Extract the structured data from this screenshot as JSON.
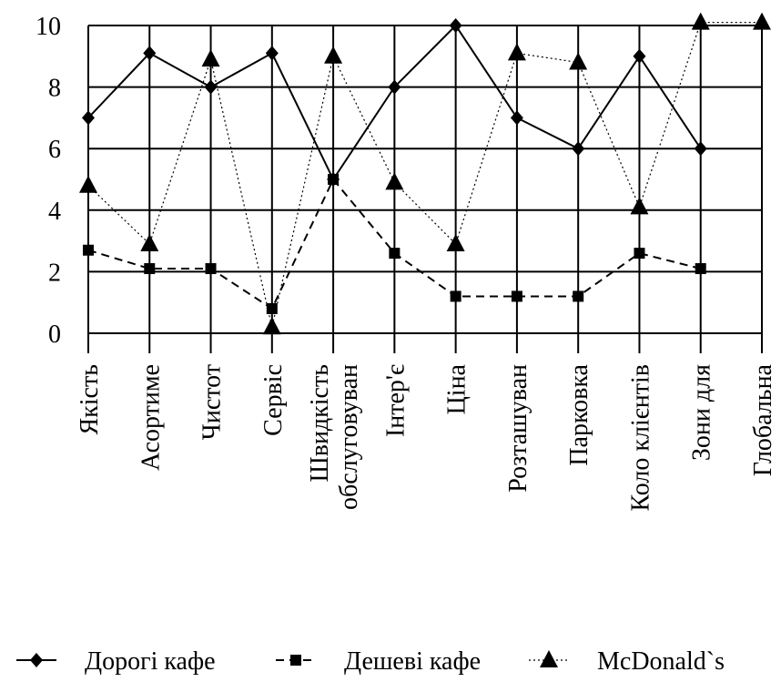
{
  "chart_data": {
    "type": "line",
    "categories": [
      [
        "Якість"
      ],
      [
        "Асортиме"
      ],
      [
        "Чистот"
      ],
      [
        "Сервіс"
      ],
      [
        "Швидкість",
        "обслуговуван"
      ],
      [
        "Інтер'є"
      ],
      [
        "Ціна"
      ],
      [
        "Розташуван"
      ],
      [
        "Парковка"
      ],
      [
        "Коло клієнтів"
      ],
      [
        "Зони для"
      ],
      [
        "Глобальна"
      ]
    ],
    "ylim": [
      0,
      10
    ],
    "yticks": [
      "0",
      "2",
      "4",
      "6",
      "8",
      "10"
    ],
    "grid": true,
    "legend_position": "bottom",
    "series": [
      {
        "name": "Дорогі кафе",
        "values": [
          7,
          9.1,
          8,
          9.1,
          5,
          8,
          10,
          7,
          6,
          9,
          6,
          null
        ],
        "marker": "diamond",
        "line": "solid",
        "color": "#000000"
      },
      {
        "name": "Дешеві кафе",
        "values": [
          2.7,
          2.1,
          2.1,
          0.8,
          5,
          2.6,
          1.2,
          1.2,
          1.2,
          2.6,
          2.1,
          null
        ],
        "marker": "square",
        "line": "dashed",
        "color": "#000000"
      },
      {
        "name": "McDonald`s",
        "values": [
          4.8,
          2.9,
          8.9,
          0.2,
          9,
          4.9,
          2.9,
          9.1,
          8.8,
          4.1,
          10.1,
          10.1
        ],
        "marker": "triangle",
        "line": "dotted",
        "color": "#000000"
      }
    ]
  }
}
